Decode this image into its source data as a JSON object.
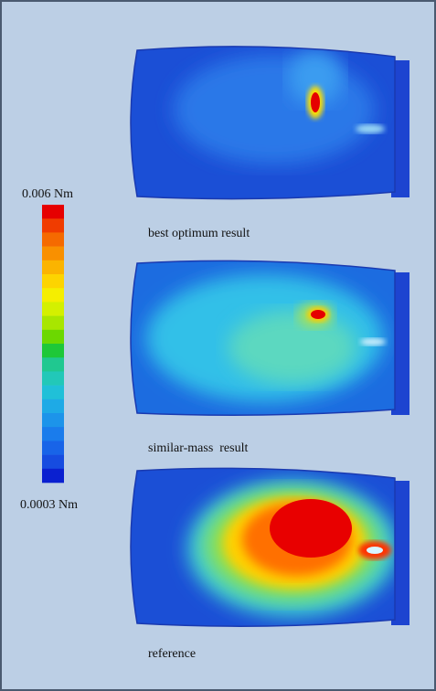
{
  "colorbar": {
    "max_label": "0.006 Nm",
    "min_label": "0.0003 Nm"
  },
  "panels": [
    {
      "caption": "best optimum result"
    },
    {
      "caption": "similar-mass  result"
    },
    {
      "caption": "reference"
    }
  ]
}
